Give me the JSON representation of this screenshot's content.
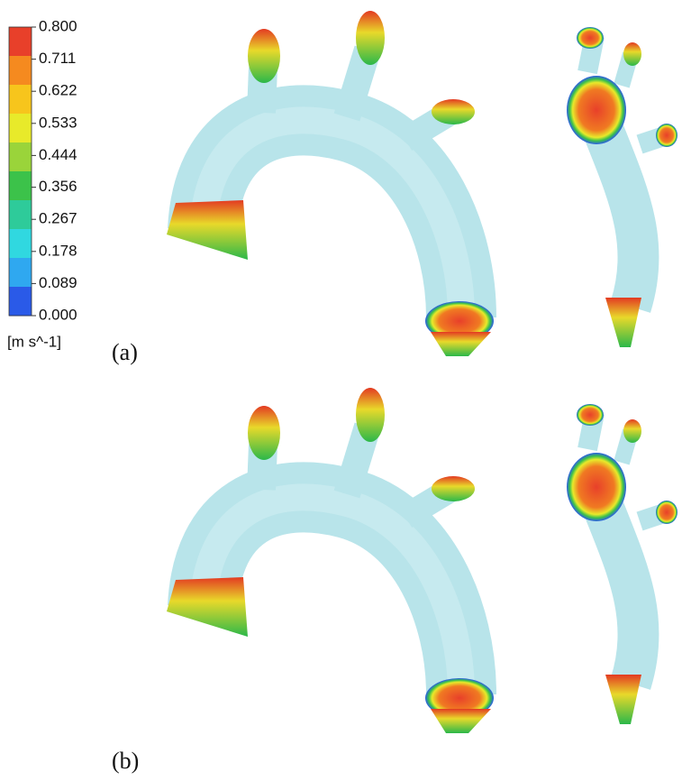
{
  "colorbar": {
    "ticks": [
      {
        "value": 0.8,
        "label": "0.800"
      },
      {
        "value": 0.711,
        "label": "0.711"
      },
      {
        "value": 0.622,
        "label": "0.622"
      },
      {
        "value": 0.533,
        "label": "0.533"
      },
      {
        "value": 0.444,
        "label": "0.444"
      },
      {
        "value": 0.356,
        "label": "0.356"
      },
      {
        "value": 0.267,
        "label": "0.267"
      },
      {
        "value": 0.178,
        "label": "0.178"
      },
      {
        "value": 0.089,
        "label": "0.089"
      },
      {
        "value": 0,
        "label": "0.000"
      }
    ],
    "colors": [
      "#e8402a",
      "#f58a1f",
      "#f7c51c",
      "#e8ea2a",
      "#9ad43a",
      "#3cc24a",
      "#2ecb9a",
      "#30d8e0",
      "#2fa8f0",
      "#2a5ae8"
    ],
    "unit": "[m s^-1]"
  },
  "panels": [
    {
      "label": "(a)"
    },
    {
      "label": "(b)"
    }
  ]
}
